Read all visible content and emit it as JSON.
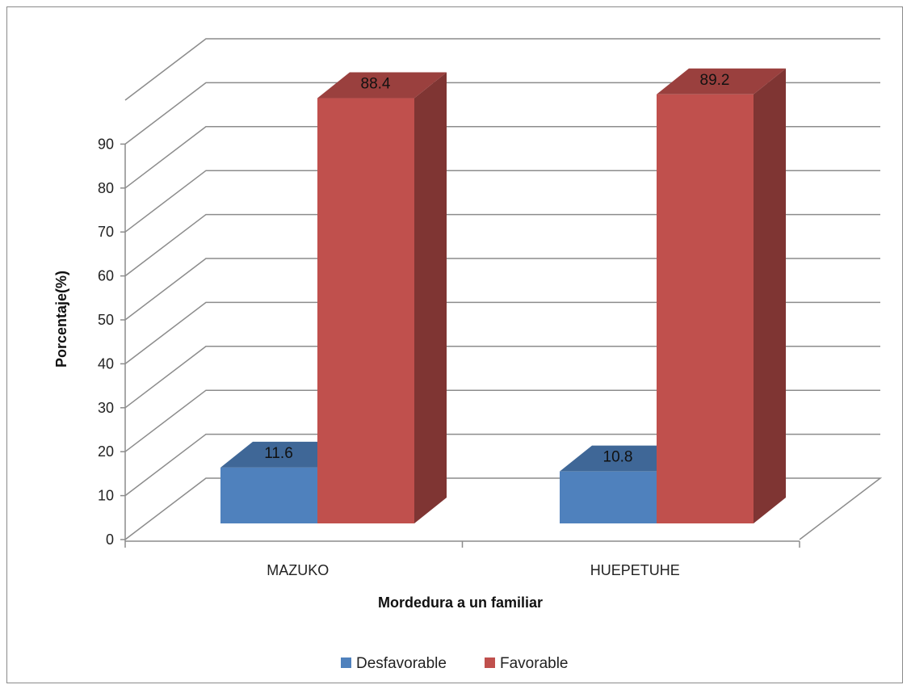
{
  "chart_data": {
    "type": "bar",
    "categories": [
      "MAZUKO",
      "HUEPETUHE"
    ],
    "series": [
      {
        "name": "Desfavorable",
        "values": [
          11.6,
          10.8
        ],
        "color": "#4F81BD"
      },
      {
        "name": "Favorable",
        "values": [
          88.4,
          89.2
        ],
        "color": "#C0504D"
      }
    ],
    "title": "",
    "xlabel": "Mordedura a un familiar",
    "ylabel": "Porcentaje(%)",
    "ylim": [
      0,
      100
    ],
    "yticks": [
      0,
      10,
      20,
      30,
      40,
      50,
      60,
      70,
      80,
      90
    ],
    "grid": true,
    "legend": "bottom",
    "style": "3d-clustered-column"
  }
}
